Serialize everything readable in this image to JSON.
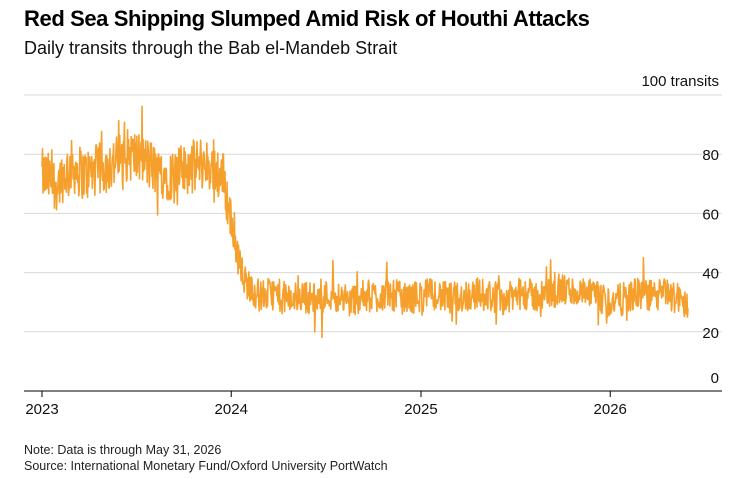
{
  "title": "Red Sea Shipping Slumped Amid Risk of Houthi Attacks",
  "subtitle": "Daily transits through the Bab el-Mandeb Strait",
  "note": "Note: Data is through May 31, 2026",
  "source": "Source: International Monetary Fund/Oxford University PortWatch",
  "colors": {
    "series": "#f5a02c",
    "grid": "#d9d9d9",
    "axis": "#000000"
  },
  "chart_data": {
    "type": "line",
    "title": "Red Sea Shipping Slumped Amid Risk of Houthi Attacks",
    "subtitle": "Daily transits through the Bab el-Mandeb Strait",
    "ylabel": "",
    "ylim": [
      0,
      100
    ],
    "y_ticks": [
      0,
      20,
      40,
      60,
      80,
      100
    ],
    "y_tick_labels": [
      "0",
      "20",
      "40",
      "60",
      "80",
      "100 transits"
    ],
    "x_ticks": [
      "2023-01-01",
      "2024-01-01",
      "2025-01-01",
      "2026-01-01"
    ],
    "x_tick_labels": [
      "2023",
      "2024",
      "2025",
      "2026"
    ],
    "grid": "horizontal",
    "series": [
      {
        "values_weekly": {
          "start": "2023-01-01",
          "end": "2026-05-31",
          "x": [
            "2023-01-01",
            "2023-01-29",
            "2023-02-26",
            "2023-03-26",
            "2023-04-23",
            "2023-05-21",
            "2023-06-18",
            "2023-07-16",
            "2023-08-13",
            "2023-09-10",
            "2023-10-08",
            "2023-11-05",
            "2023-12-03",
            "2023-12-17",
            "2023-12-31",
            "2024-01-14",
            "2024-01-28",
            "2024-02-25",
            "2024-03-24",
            "2024-04-21",
            "2024-05-19",
            "2024-06-16",
            "2024-07-14",
            "2024-08-11",
            "2024-09-08",
            "2024-10-06",
            "2024-11-03",
            "2024-12-01",
            "2024-12-29",
            "2025-01-26",
            "2025-02-23",
            "2025-03-23",
            "2025-04-20",
            "2025-05-18",
            "2025-06-15",
            "2025-07-13",
            "2025-08-10",
            "2025-09-07",
            "2025-10-05",
            "2025-11-02",
            "2025-11-30",
            "2025-12-28",
            "2026-01-25",
            "2026-02-22",
            "2026-03-22",
            "2026-04-19",
            "2026-05-31"
          ],
          "y": [
            73,
            70,
            76,
            73,
            75,
            77,
            80,
            78,
            74,
            73,
            75,
            77,
            75,
            72,
            58,
            45,
            37,
            32,
            33,
            31,
            32,
            31,
            33,
            30,
            32,
            32,
            33,
            31,
            32,
            33,
            31,
            32,
            33,
            32,
            31,
            33,
            32,
            33,
            34,
            33,
            32,
            30,
            31,
            33,
            32,
            33,
            29
          ]
        }
      }
    ]
  }
}
